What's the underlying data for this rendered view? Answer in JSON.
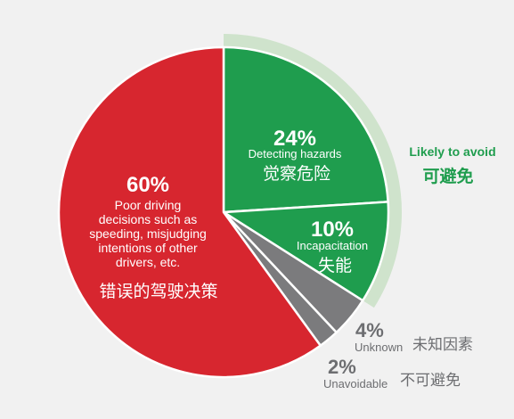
{
  "chart_data": {
    "type": "pie",
    "slices": [
      {
        "label_zh": "觉察危险",
        "pct_text": "24%",
        "value": 24,
        "desc": [
          "Detecting hazards"
        ],
        "color": "#1f9d4e",
        "text_color": "#ffffff"
      },
      {
        "label_zh": "失能",
        "pct_text": "10%",
        "value": 10,
        "desc": [
          "Incapacitation"
        ],
        "color": "#1f9d4e",
        "text_color": "#ffffff"
      },
      {
        "label_zh": "未知因素",
        "pct_text": "4%",
        "value": 4,
        "desc": [
          "Unknown"
        ],
        "color": "#7b7b7d",
        "text_color": "#6d6e71"
      },
      {
        "label_zh": "不可避免",
        "pct_text": "2%",
        "value": 2,
        "desc": [
          "Unavoidable"
        ],
        "color": "#7b7b7d",
        "text_color": "#6d6e71"
      },
      {
        "label_zh": "错误的驾驶决策",
        "pct_text": "60%",
        "value": 60,
        "desc": [
          "Poor driving",
          "decisions such as",
          "speeding, misjudging",
          "intentions of other",
          "drivers, etc."
        ],
        "color": "#d7262f",
        "text_color": "#ffffff"
      }
    ],
    "group": {
      "label_en": "Likely to avoid",
      "label_zh": "可避免",
      "color": "#cfe3cc",
      "text_color": "#1f9d4e",
      "covers": [
        0,
        1
      ]
    }
  }
}
